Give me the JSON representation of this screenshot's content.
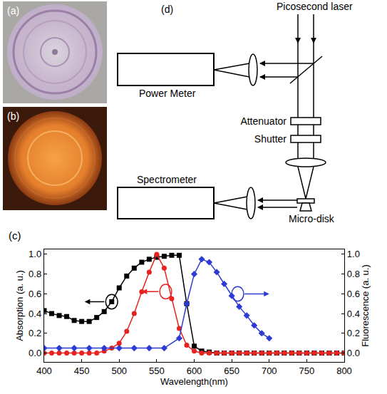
{
  "panels": {
    "a": "(a)",
    "b": "(b)",
    "c": "(c)",
    "d": "(d)"
  },
  "diagram": {
    "laser": "Picosecond laser",
    "power_meter": "Power Meter",
    "attenuator": "Attenuator",
    "shutter": "Shutter",
    "spectrometer": "Spectrometer",
    "sample": "Micro-disk"
  },
  "chart_data": {
    "type": "line",
    "x_title": "Wavelength(nm)",
    "y_title": "Absorption (a. u.)",
    "y2_title": "Fluorescence (a. u.)",
    "xlim": [
      400,
      800
    ],
    "xticks": [
      400,
      450,
      500,
      550,
      600,
      650,
      700,
      750,
      800
    ],
    "ylim": [
      -0.09,
      1.05
    ],
    "yticks": [
      {
        "value": 0,
        "label": "0.0"
      },
      0.2,
      0.4,
      0.6,
      0.8,
      {
        "value": 1,
        "label": "1.0"
      }
    ],
    "y2lim": [
      -0.09,
      1.05
    ],
    "y2ticks": [
      {
        "value": 0,
        "label": "0.0"
      },
      0.2,
      0.4,
      0.6,
      0.8,
      {
        "value": 1,
        "label": "1.0"
      }
    ],
    "grid": false,
    "series": [
      {
        "color": "#000000",
        "marker": "square",
        "line_style": "solid",
        "axis": "y",
        "x": [
          400,
          410,
          420,
          430,
          440,
          450,
          460,
          470,
          480,
          490,
          500,
          510,
          520,
          530,
          540,
          550,
          560,
          570,
          580,
          590,
          600,
          610,
          620,
          630,
          640,
          650,
          660,
          670,
          680,
          690,
          700,
          710,
          720,
          730,
          740,
          750,
          760,
          770,
          780,
          790,
          800
        ],
        "values": [
          0.43,
          0.4,
          0.38,
          0.37,
          0.33,
          0.32,
          0.32,
          0.36,
          0.42,
          0.52,
          0.66,
          0.78,
          0.86,
          0.92,
          0.95,
          0.97,
          0.98,
          0.99,
          0.99,
          0.5,
          0.07,
          0.02,
          0.01,
          0,
          0,
          0,
          0,
          0,
          0,
          0,
          0,
          0,
          0,
          0,
          0,
          0,
          0,
          0,
          0,
          0,
          0
        ]
      },
      {
        "color": "#e8231f",
        "marker": "circle",
        "line_style": "solid",
        "axis": "y",
        "x": [
          400,
          410,
          420,
          430,
          440,
          450,
          460,
          470,
          480,
          490,
          500,
          510,
          520,
          530,
          540,
          550,
          560,
          570,
          580,
          590,
          600,
          610,
          620,
          630,
          640,
          650,
          660,
          670,
          680,
          690,
          700,
          710,
          720,
          730,
          740,
          750,
          760,
          770,
          780,
          790,
          800
        ],
        "values": [
          0,
          0,
          0,
          0,
          0,
          0,
          0,
          0,
          0.02,
          0.05,
          0.1,
          0.22,
          0.4,
          0.62,
          0.82,
          1.0,
          0.86,
          0.55,
          0.25,
          0.08,
          0.02,
          0,
          0,
          0,
          0,
          0,
          0,
          0,
          0,
          0,
          0,
          0,
          0,
          0,
          0,
          0,
          0,
          0,
          0,
          0,
          0
        ]
      },
      {
        "color": "#2b3bd4",
        "marker": "diamond",
        "line_style": "solid",
        "axis": "y2",
        "x": [
          400,
          420,
          440,
          460,
          480,
          500,
          520,
          540,
          560,
          580,
          590,
          600,
          610,
          620,
          630,
          640,
          650,
          660,
          670,
          680,
          690,
          700
        ],
        "values": [
          0.05,
          0.05,
          0.05,
          0.05,
          0.05,
          0.05,
          0.05,
          0.05,
          0.05,
          0.15,
          0.5,
          0.8,
          0.95,
          0.92,
          0.82,
          0.7,
          0.58,
          0.47,
          0.38,
          0.28,
          0.2,
          0.15
        ]
      }
    ]
  }
}
